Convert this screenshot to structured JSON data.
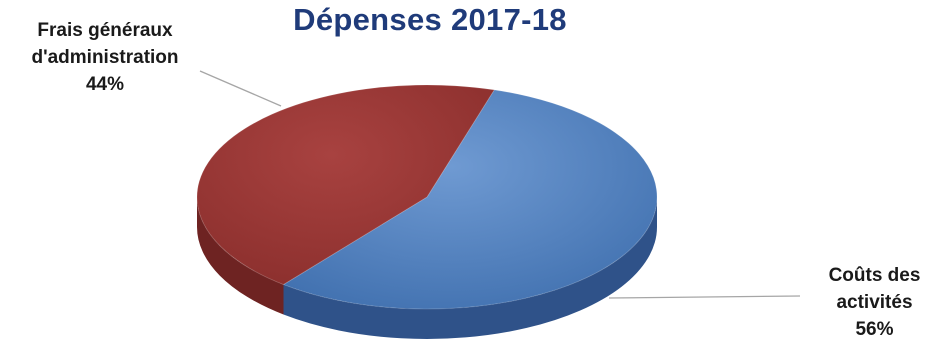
{
  "chart_data": {
    "type": "pie",
    "title": "Dépenses 2017-18",
    "slices": [
      {
        "label_lines": [
          "Coûts des",
          "activités"
        ],
        "percent_text": "56%",
        "value": 56,
        "color": "#4f81bd",
        "side_color": "#2f5289"
      },
      {
        "label_lines": [
          "Frais généraux",
          "d'administration"
        ],
        "percent_text": "44%",
        "value": 44,
        "color": "#9a3432",
        "side_color": "#6e2322"
      }
    ]
  }
}
